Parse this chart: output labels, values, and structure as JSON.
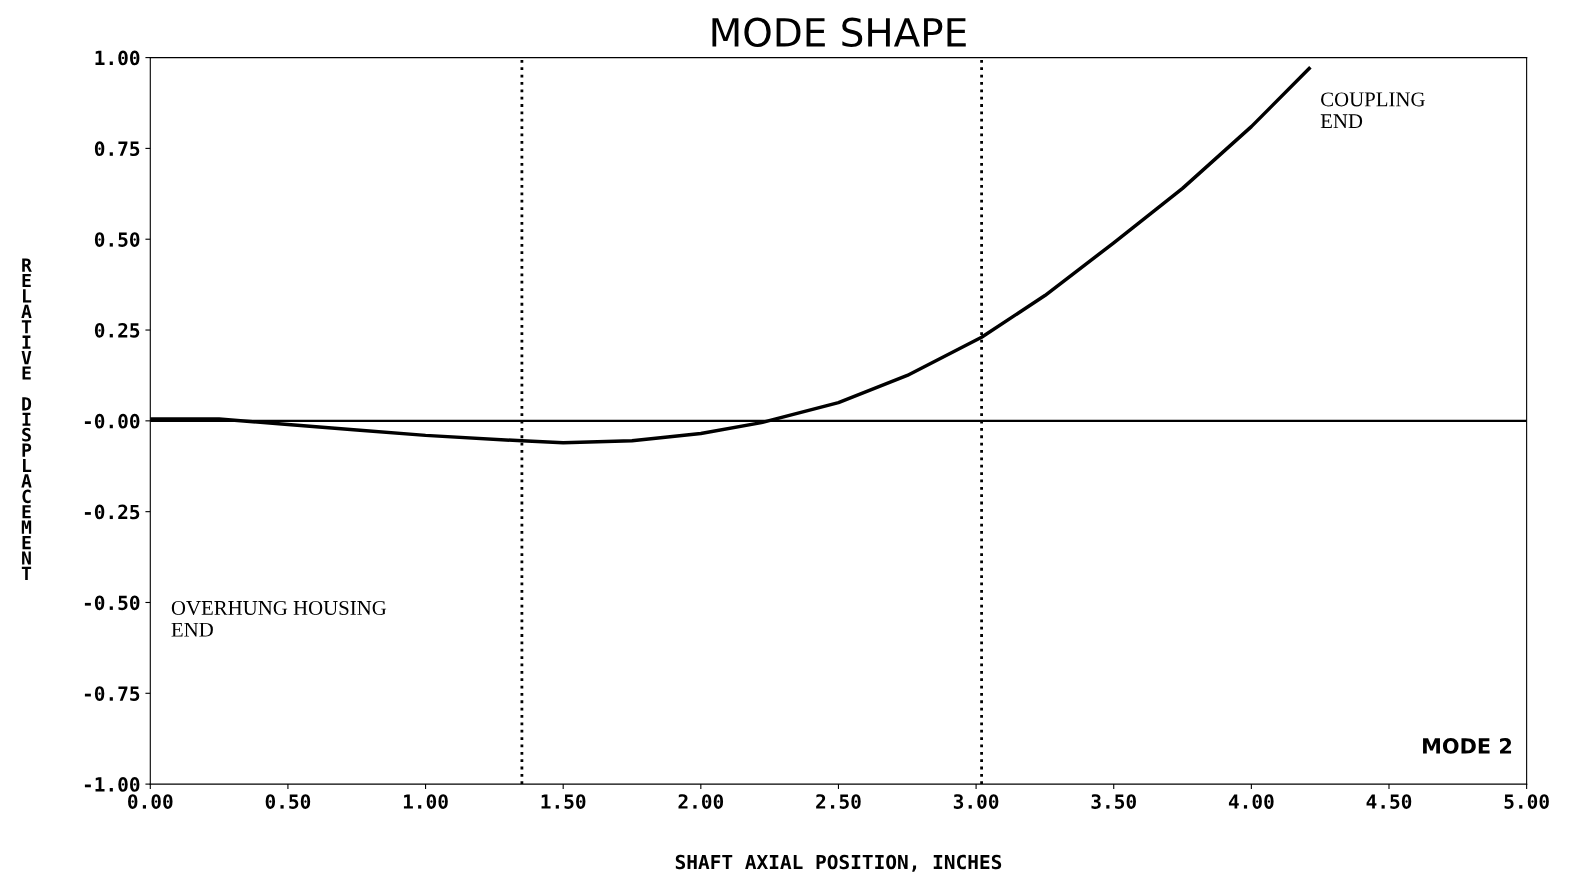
{
  "chart_data": {
    "type": "line",
    "title": "MODE SHAPE",
    "xlabel": "SHAFT AXIAL POSITION, INCHES",
    "ylabel": "RELATIVE DISPLACEMENT",
    "x": [
      0,
      0.25,
      0.5,
      0.75,
      1.0,
      1.35,
      1.5,
      1.75,
      2.0,
      2.22,
      2.5,
      2.75,
      3.02,
      3.25,
      3.5,
      3.75,
      4.0,
      4.21
    ],
    "series": [
      {
        "color": "#000000",
        "values": [
          0.005,
          0.005,
          -0.01,
          -0.025,
          -0.04,
          -0.055,
          -0.06,
          -0.055,
          -0.035,
          -0.005,
          0.05,
          0.125,
          0.23,
          0.345,
          0.49,
          0.64,
          0.81,
          0.97
        ]
      }
    ],
    "xlim": [
      0,
      5
    ],
    "ylim": [
      -1,
      1
    ],
    "xticks": [
      {
        "value": 0,
        "label": "0.00"
      },
      {
        "value": 0.5,
        "label": "0.50"
      },
      {
        "value": 1,
        "label": "1.00"
      },
      {
        "value": 1.5,
        "label": "1.50"
      },
      {
        "value": 2,
        "label": "2.00"
      },
      {
        "value": 2.5,
        "label": "2.50"
      },
      {
        "value": 3,
        "label": "3.00"
      },
      {
        "value": 3.5,
        "label": "3.50"
      },
      {
        "value": 4,
        "label": "4.00"
      },
      {
        "value": 4.5,
        "label": "4.50"
      },
      {
        "value": 5,
        "label": "5.00"
      }
    ],
    "yticks": [
      {
        "value": -1,
        "label": "-1.00"
      },
      {
        "value": -0.75,
        "label": "-0.75"
      },
      {
        "value": -0.5,
        "label": "-0.50"
      },
      {
        "value": -0.25,
        "label": "-0.25"
      },
      {
        "value": 0,
        "label": "-0.00"
      },
      {
        "value": 0.25,
        "label": "0.25"
      },
      {
        "value": 0.5,
        "label": "0.50"
      },
      {
        "value": 0.75,
        "label": "0.75"
      },
      {
        "value": 1,
        "label": "1.00"
      }
    ],
    "ref_lines": [
      {
        "axis": "y",
        "value": 0,
        "line_style": "solid",
        "color": "#000000"
      },
      {
        "axis": "x",
        "value": 1.35,
        "line_style": "dotted",
        "color": "#000000"
      },
      {
        "axis": "x",
        "value": 3.02,
        "line_style": "dotted",
        "color": "#000000"
      }
    ],
    "annotations": [
      "COUPLING\nEND",
      "OVERHUNG HOUSING\nEND",
      "MODE 2"
    ],
    "grid": false,
    "legend": false,
    "marker": "none",
    "line_style": "solid"
  }
}
